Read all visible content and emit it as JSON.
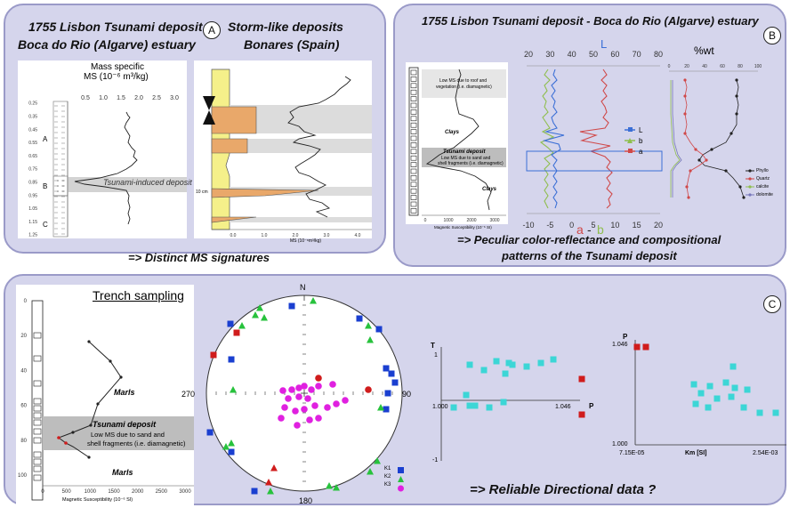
{
  "panelA": {
    "badge": "A",
    "title_left_1": "1755 Lisbon Tsunami deposit",
    "title_left_2": "Boca do Rio (Algarve) estuary",
    "title_right_1": "Storm-like deposits",
    "title_right_2": "Bonares (Spain)",
    "ms_header_1": "Mass specific",
    "ms_header_2": "MS (10⁻⁶ m³/kg)",
    "ms_ticks": [
      "0.5",
      "1.0",
      "1.5",
      "2.0",
      "2.5",
      "3.0"
    ],
    "depth_ticks": [
      "0.25",
      "0.35",
      "0.45",
      "0.55",
      "0.65",
      "0.75",
      "0.85",
      "0.95",
      "1.05",
      "1.15",
      "1.25"
    ],
    "unit_labels": [
      "A",
      "B",
      "C"
    ],
    "annotation": "Tsunami-induced deposit",
    "storm_axis_ticks": [
      "0.0",
      "1.0",
      "2.0",
      "3.0",
      "4.0"
    ],
    "storm_axis_label": "MS (10⁻⁸m³/kg)",
    "scale_label": "10 cm",
    "conclusion": "=> Distinct MS signatures"
  },
  "panelB": {
    "badge": "B",
    "title": "1755 Lisbon Tsunami deposit  - Boca do Rio (Algarve) estuary",
    "ms_note_1": "Low MS due to roof and",
    "ms_note_2": "vegetation (i.e. diamagnetic)",
    "clays_1": "Clays",
    "tsunami_label": "Tsunami deposit",
    "tsunami_note_1": "Low MS due to sand and",
    "tsunami_note_2": "shell fragments (i.e. diamagnetic)",
    "clays_2": "Clays",
    "ms_ticks": [
      "0",
      "1000",
      "2000",
      "3000"
    ],
    "ms_axis_label": "Magnetic Susceptibility (10⁻⁶ SI)",
    "L_label": "L",
    "L_ticks": [
      "20",
      "30",
      "40",
      "50",
      "60",
      "70",
      "80"
    ],
    "ab_ticks": [
      "-10",
      "-5",
      "0",
      "5",
      "10",
      "15",
      "20"
    ],
    "a_label": "a",
    "dash": "-",
    "b_label": "b",
    "legend": [
      "L",
      "b",
      "a"
    ],
    "wt_label": "%wt",
    "wt_ticks": [
      "0",
      "20",
      "40",
      "60",
      "80",
      "100"
    ],
    "wt_legend": [
      "Phyllo",
      "Quartz",
      "calcite",
      "dolomite"
    ],
    "conclusion_1": "=> Peculiar color-reflectance and compositional",
    "conclusion_2": "patterns of the Tsunami deposit"
  },
  "panelC": {
    "badge": "C",
    "trench_title": "Trench sampling",
    "depth_ticks": [
      "0",
      "20",
      "40",
      "60",
      "80",
      "100"
    ],
    "marls_1": "Marls",
    "tsunami_label": "Tsunami deposit",
    "tsunami_note_1": "Low MS due to sand and",
    "tsunami_note_2": "shell fragments  (i.e. diamagnetic)",
    "marls_2": "Marls",
    "ms_ticks": [
      "0",
      "500",
      "1000",
      "1500",
      "2000",
      "2500",
      "3000"
    ],
    "ms_axis_label": "Magnetic Susceptibility (10⁻⁶ SI)",
    "stereo_labels": {
      "n": "N",
      "e": "90",
      "s": "180",
      "w": "270"
    },
    "legend": [
      "K1",
      "K2",
      "K3"
    ],
    "tp": {
      "y_label": "T",
      "y_top": "1",
      "y_bottom": "-1",
      "x_left": "1.000",
      "x_right": "1.046",
      "x_label": "P"
    },
    "pk": {
      "y_label": "P",
      "y_top": "1.046",
      "y_bottom": "1.000",
      "x_left": "7.15E-05",
      "x_mid": "Km [SI]",
      "x_right": "2.54E-03"
    },
    "conclusion": "=> Reliable Directional data ?"
  },
  "colors": {
    "panel_bg": "#d5d5ec",
    "K1": "#1a3fd0",
    "K2": "#27c23c",
    "K3": "#e020e0",
    "cyan": "#3cd6d6",
    "red": "#d01c1c",
    "L_series": "#3b6fd6",
    "b_series": "#8fbe4e",
    "a_series": "#d04848"
  }
}
